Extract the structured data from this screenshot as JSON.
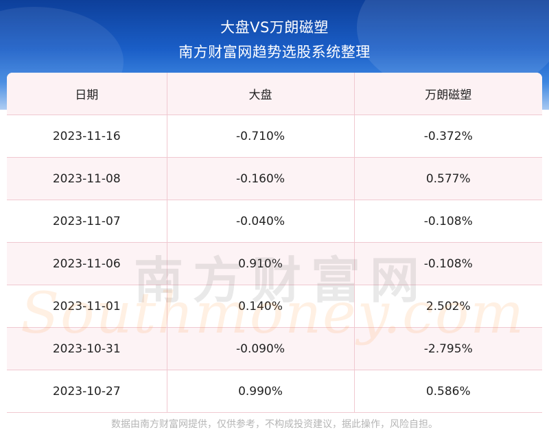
{
  "header": {
    "title_line1": "大盘VS万朗磁塑",
    "title_line2": "南方财富网趋势选股系统整理"
  },
  "table": {
    "columns": [
      "日期",
      "大盘",
      "万朗磁塑"
    ],
    "rows": [
      [
        "2023-11-16",
        "-0.710%",
        "-0.372%"
      ],
      [
        "2023-11-08",
        "-0.160%",
        "0.577%"
      ],
      [
        "2023-11-07",
        "-0.040%",
        "-0.108%"
      ],
      [
        "2023-11-06",
        "0.910%",
        "-0.108%"
      ],
      [
        "2023-11-01",
        "0.140%",
        "2.502%"
      ],
      [
        "2023-10-31",
        "-0.090%",
        "-2.795%"
      ],
      [
        "2023-10-27",
        "0.990%",
        "0.586%"
      ]
    ]
  },
  "watermark": {
    "cn": "南方财富网",
    "en": "Southmoney.com"
  },
  "footer": {
    "disclaimer": "数据由南方财富网提供，仅供参考，不构成投资建议，据此操作，风险自担。"
  },
  "colors": {
    "banner_blue": "#1a5ec7",
    "row_alt": "#fdf3f5",
    "grid_line": "#f0c8d0"
  }
}
